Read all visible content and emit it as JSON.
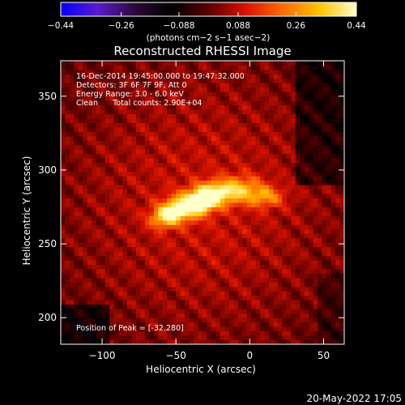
{
  "chart_data": {
    "type": "heatmap",
    "title": "Reconstructed RHESSI Image",
    "xlabel": "Heliocentric X (arcsec)",
    "ylabel": "Heliocentric Y (arcsec)",
    "xlim": [
      -128,
      64
    ],
    "ylim": [
      182,
      374
    ],
    "xticks": [
      -100,
      -50,
      0,
      50
    ],
    "yticks": [
      200,
      250,
      300,
      350
    ],
    "colorbar": {
      "ticks": [
        -0.44,
        -0.26,
        -0.088,
        0.088,
        0.26,
        0.44
      ],
      "tick_labels": [
        "−0.44",
        "−0.26",
        "−0.088",
        "0.088",
        "0.26",
        "0.44"
      ],
      "range": [
        -0.44,
        0.44
      ],
      "units_label": "(photons cm−2 s−1 asec−2)",
      "stops": [
        "#0000ff",
        "#5a1ccb",
        "#2a0a3a",
        "#000000",
        "#5a0000",
        "#d81200",
        "#ff6a00",
        "#ffc300",
        "#ffffc8"
      ]
    },
    "annotations": [
      "16-Dec-2014 19:45:00.000 to 19:47:32.000",
      "Detectors: 3F 6F 7F 9F, Att 0",
      "Energy Range: 3.0 - 6.0 keV",
      "Clean      Total counts: 2.90E+04"
    ],
    "peak_label": "Position of Peak = [-32,280]",
    "peak": [
      -32,
      280
    ],
    "sources": [
      {
        "x": -32,
        "y": 280,
        "amp": 0.44,
        "sx": 9,
        "sy": 6,
        "rot": 25
      },
      {
        "x": -48,
        "y": 274,
        "amp": 0.3,
        "sx": 9,
        "sy": 6,
        "rot": 15
      },
      {
        "x": -58,
        "y": 268,
        "amp": 0.22,
        "sx": 7,
        "sy": 5,
        "rot": 10
      },
      {
        "x": -12,
        "y": 286,
        "amp": 0.28,
        "sx": 12,
        "sy": 6,
        "rot": 10
      },
      {
        "x": 10,
        "y": 282,
        "amp": 0.2,
        "sx": 9,
        "sy": 5,
        "rot": 0
      }
    ]
  },
  "footer": {
    "timestamp": "20-May-2022 17:05"
  }
}
